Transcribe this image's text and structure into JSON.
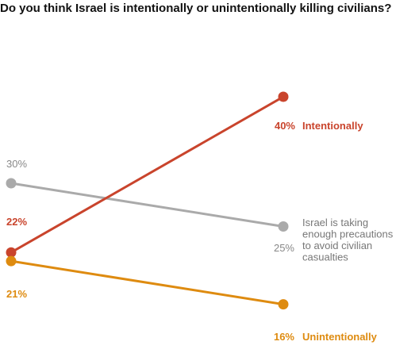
{
  "chart_data": {
    "type": "line",
    "title": "Do you think Israel is intentionally or unintentionally killing civilians?",
    "x": [
      "start",
      "end"
    ],
    "ylim": [
      10,
      45
    ],
    "grid": false,
    "series": [
      {
        "name": "Intentionally",
        "color": "#c9442c",
        "values": [
          22,
          40
        ],
        "value_labels": [
          "22%",
          "40%"
        ],
        "label_lines": [
          "Intentionally"
        ],
        "bold": true
      },
      {
        "name": "Israel is taking enough precautions to avoid civilian casualties",
        "color": "#aaaaaa",
        "values": [
          30,
          25
        ],
        "value_labels": [
          "30%",
          "25%"
        ],
        "label_lines": [
          "Israel is taking",
          "enough precautions",
          "to avoid civilian",
          "casualties"
        ],
        "bold": false
      },
      {
        "name": "Unintentionally",
        "color": "#de8b10",
        "values": [
          21,
          16
        ],
        "value_labels": [
          "21%",
          "16%"
        ],
        "label_lines": [
          "Unintentionally"
        ],
        "bold": true
      }
    ]
  }
}
